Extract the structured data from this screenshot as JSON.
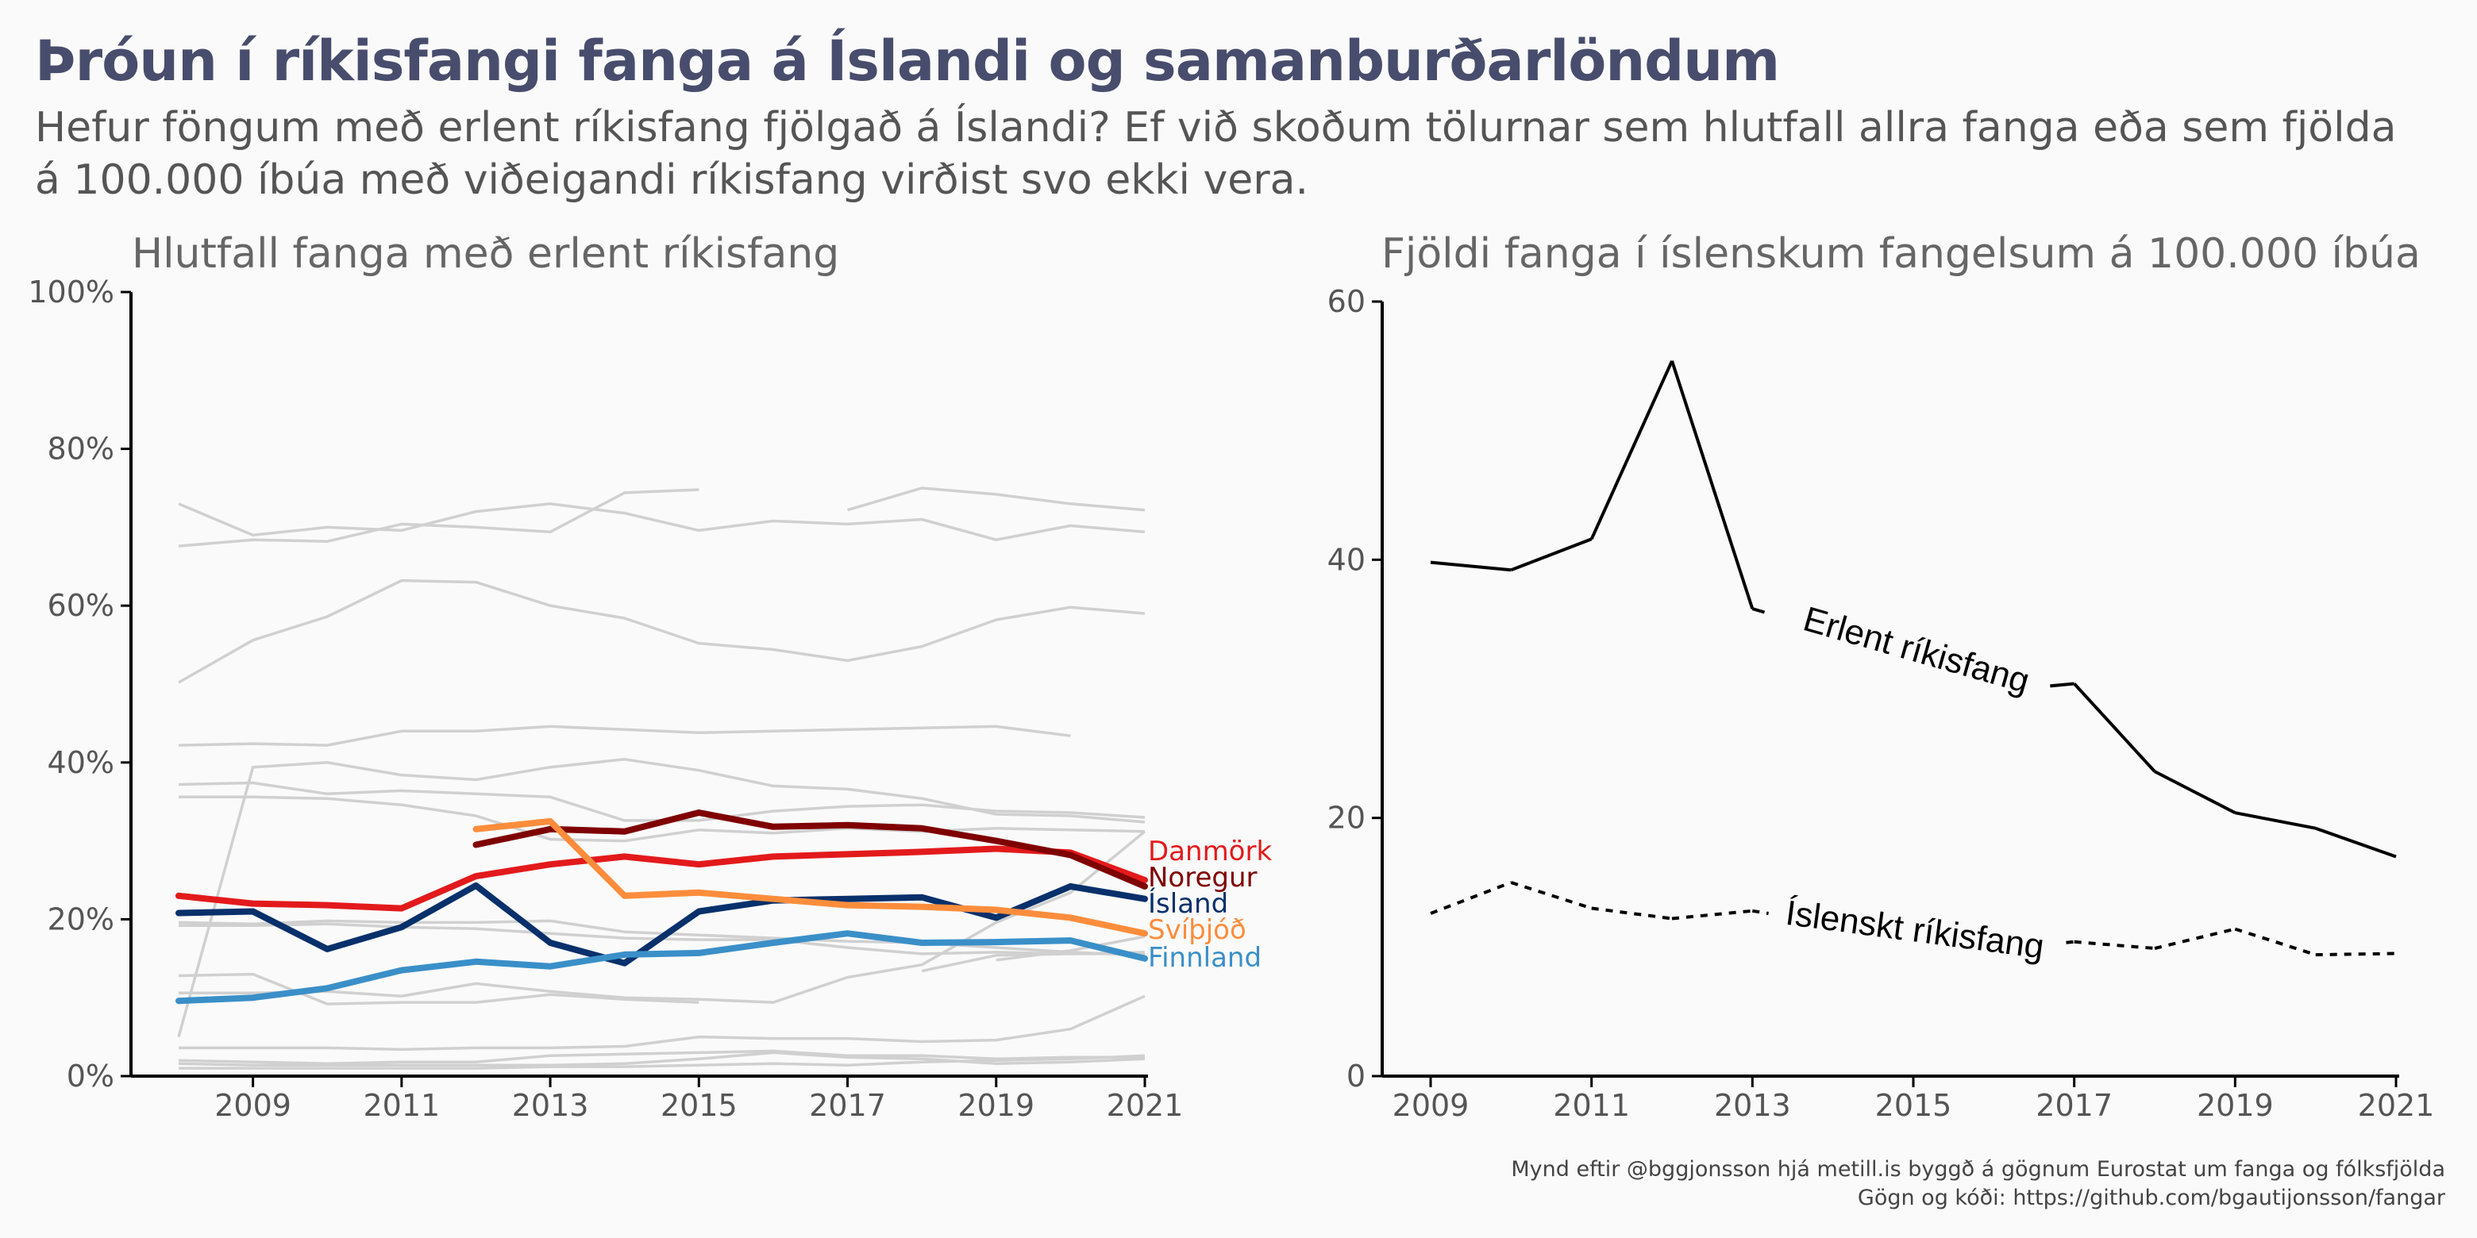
{
  "title": "Þróun í ríkisfangi fanga á Íslandi og samanburðarlöndum",
  "subtitle": "Hefur föngum með erlent ríkisfang fjölgað á Íslandi? Ef við skoðum tölurnar sem hlutfall allra fanga eða sem fjölda á 100.000 íbúa með viðeigandi ríkisfang virðist svo ekki vera.",
  "caption_line1": "Mynd eftir @bggjonsson hjá metill.is byggð á gögnum Eurostat um fanga og fólksfjölda",
  "caption_line2": "Gögn og kóði: https://github.com/bgautijonsson/fangar",
  "chart_data": [
    {
      "type": "line",
      "title": "Hlutfall fanga með erlent ríkisfang",
      "xlabel": "",
      "ylabel": "",
      "xlim": [
        2008,
        2021
      ],
      "ylim": [
        0,
        100
      ],
      "x_ticks": [
        2009,
        2011,
        2013,
        2015,
        2017,
        2019,
        2021
      ],
      "y_ticks": [
        0,
        20,
        40,
        60,
        80,
        100
      ],
      "y_tick_labels": [
        "0%",
        "20%",
        "40%",
        "60%",
        "80%",
        "100%"
      ],
      "grid": false,
      "x": [
        2008,
        2009,
        2010,
        2011,
        2012,
        2013,
        2014,
        2015,
        2016,
        2017,
        2018,
        2019,
        2020,
        2021
      ],
      "highlighted_series": [
        {
          "name": "Danmörk",
          "color": "#e31a1c",
          "values": [
            23,
            22,
            21.8,
            21.4,
            25.5,
            27,
            28,
            27,
            28,
            28.3,
            28.6,
            29,
            28.5,
            25
          ]
        },
        {
          "name": "Noregur",
          "color": "#7f0000",
          "values": [
            null,
            null,
            null,
            null,
            29.5,
            31.5,
            31.2,
            33.6,
            31.8,
            32,
            31.6,
            30,
            28.2,
            24.2
          ]
        },
        {
          "name": "Ísland",
          "color": "#08306b",
          "values": [
            20.8,
            21,
            16.2,
            19,
            24.3,
            17,
            14.4,
            21,
            22.4,
            22.6,
            22.8,
            20.2,
            24.2,
            22.6
          ]
        },
        {
          "name": "Svíþjóð",
          "color": "#fd8d3c",
          "values": [
            null,
            null,
            null,
            null,
            31.5,
            32.5,
            23,
            23.4,
            22.6,
            21.8,
            21.6,
            21.2,
            20.2,
            18.2
          ]
        },
        {
          "name": "Finnland",
          "color": "#3a8fc8",
          "values": [
            9.6,
            10,
            11.2,
            13.5,
            14.6,
            14,
            15.5,
            15.7,
            17,
            18.2,
            17,
            17.1,
            17.3,
            15
          ]
        }
      ],
      "background_series": [
        {
          "values": [
            73,
            69,
            70,
            69.6,
            72,
            73,
            71.8,
            69.6,
            70.8,
            70.4,
            71,
            68.4,
            70.2,
            69.4
          ]
        },
        {
          "values": [
            67.6,
            68.4,
            68.2,
            70.4,
            70,
            69.4,
            74.4,
            74.8,
            null,
            null,
            null,
            null,
            null,
            null
          ]
        },
        {
          "values": [
            null,
            null,
            null,
            null,
            null,
            null,
            null,
            null,
            null,
            72.2,
            75,
            74.2,
            73,
            72.2
          ]
        },
        {
          "values": [
            50.2,
            55.6,
            58.6,
            63.2,
            63,
            60,
            58.4,
            55.2,
            54.4,
            53,
            54.8,
            58.2,
            59.8,
            59
          ]
        },
        {
          "values": [
            42.2,
            42.4,
            42.2,
            44,
            44,
            44.6,
            44.2,
            43.8,
            44,
            44.2,
            44.4,
            44.6,
            43.4,
            null
          ]
        },
        {
          "values": [
            37.2,
            37.4,
            36,
            36.4,
            36,
            35.6,
            32.6,
            32.6,
            33.8,
            34.4,
            34.6,
            33.8,
            33.6,
            33
          ]
        },
        {
          "values": [
            35.6,
            35.6,
            35.4,
            34.6,
            33.2,
            30.2,
            30,
            31.4,
            31,
            31.6,
            31.2,
            31.6,
            31.4,
            31.2
          ]
        },
        {
          "values": [
            5,
            39.4,
            40,
            38.4,
            37.8,
            39.4,
            40.4,
            39,
            37,
            36.6,
            35.4,
            33.4,
            33.2,
            32.4
          ]
        },
        {
          "values": [
            19.6,
            19.4,
            19.8,
            19.6,
            19.6,
            19.8,
            18.4,
            18,
            17.6,
            17.2,
            17,
            16.4,
            15.8,
            15.4
          ]
        },
        {
          "values": [
            19.2,
            19.2,
            19.4,
            19,
            18.8,
            18.2,
            17.6,
            17.4,
            17.4,
            16.4,
            15.6,
            15.8,
            15.6,
            15.8
          ]
        },
        {
          "values": [
            12.8,
            13,
            9.2,
            9.4,
            9.4,
            10.4,
            9.8,
            9.4,
            null,
            null,
            null,
            null,
            null,
            null
          ]
        },
        {
          "values": [
            10.6,
            10.6,
            10.8,
            10.2,
            11.8,
            10.8,
            10,
            9.8,
            9.4,
            12.6,
            14.2,
            19.6,
            23.4,
            31.2
          ]
        },
        {
          "values": [
            null,
            null,
            null,
            null,
            null,
            null,
            null,
            null,
            null,
            null,
            13.4,
            15.4,
            15.6,
            15.6
          ]
        },
        {
          "values": [
            null,
            null,
            null,
            null,
            null,
            null,
            null,
            null,
            null,
            null,
            null,
            14.8,
            16,
            17.8
          ]
        },
        {
          "values": [
            3.6,
            3.6,
            3.6,
            3.4,
            3.6,
            3.6,
            3.8,
            5,
            4.8,
            4.8,
            4.4,
            4.6,
            6,
            10.2
          ]
        },
        {
          "values": [
            2,
            1.8,
            1.6,
            1.8,
            1.8,
            2.6,
            2.8,
            3,
            3.2,
            2.6,
            2.6,
            2.2,
            2.4,
            2.4
          ]
        },
        {
          "values": [
            1.6,
            1.4,
            1.4,
            1.4,
            1.4,
            1.4,
            1.6,
            2.2,
            3,
            2.4,
            2.2,
            1.6,
            1.8,
            2.2
          ]
        },
        {
          "values": [
            1,
            1,
            1,
            1,
            1,
            1.2,
            1.2,
            1.4,
            1.6,
            1.4,
            1.8,
            2,
            2.2,
            2.6
          ]
        }
      ]
    },
    {
      "type": "line",
      "title": "Fjöldi fanga í íslenskum fangelsum á 100.000 íbúa",
      "xlabel": "",
      "ylabel": "",
      "xlim": [
        2009,
        2021
      ],
      "ylim": [
        0,
        60
      ],
      "x_ticks": [
        2009,
        2011,
        2013,
        2015,
        2017,
        2019,
        2021
      ],
      "y_ticks": [
        0,
        20,
        40,
        60
      ],
      "grid": false,
      "x": [
        2009,
        2010,
        2011,
        2012,
        2013,
        2014,
        2015,
        2016,
        2017,
        2018,
        2019,
        2020,
        2021
      ],
      "series": [
        {
          "name": "Erlent ríkisfang",
          "style": "solid",
          "values": [
            39.8,
            39.2,
            41.6,
            55.4,
            36.2,
            34.4,
            32.6,
            29.8,
            30.4,
            23.6,
            20.4,
            19.2,
            17
          ]
        },
        {
          "name": "Íslenskt ríkisfang",
          "style": "dotted",
          "values": [
            12.6,
            15,
            13,
            12.2,
            12.8,
            11.8,
            10.8,
            9.8,
            10.4,
            9.9,
            11.4,
            9.4,
            9.5
          ]
        }
      ]
    }
  ]
}
